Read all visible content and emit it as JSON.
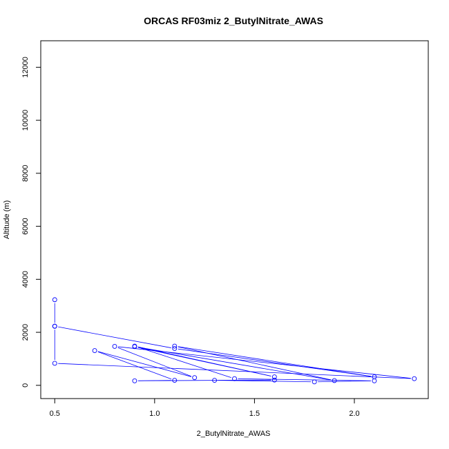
{
  "chart_data": {
    "type": "line",
    "title": "ORCAS RF03miz 2_ButylNitrate_AWAS",
    "xlabel": "2_ButylNitrate_AWAS",
    "ylabel": "Altitude (m)",
    "xlim": [
      0.43,
      2.37
    ],
    "ylim": [
      -500,
      13000
    ],
    "x_ticks": [
      0.5,
      1.0,
      1.5,
      2.0
    ],
    "x_tick_labels": [
      "0.5",
      "1.0",
      "1.5",
      "2.0"
    ],
    "y_ticks": [
      0,
      2000,
      4000,
      6000,
      8000,
      10000,
      12000
    ],
    "y_tick_labels": [
      "0",
      "2000",
      "4000",
      "6000",
      "8000",
      "10000",
      "12000"
    ],
    "grid": false,
    "legend": "none",
    "colors": {
      "series": "#0000ff",
      "axis": "#000000",
      "background": "#ffffff"
    },
    "series": [
      {
        "points": [
          {
            "x": 0.5,
            "y": 3230
          },
          {
            "x": 0.5,
            "y": 2230
          },
          {
            "x": 0.5,
            "y": 830
          },
          {
            "x": 2.3,
            "y": 250
          },
          {
            "x": 0.8,
            "y": 1470
          },
          {
            "x": 1.2,
            "y": 290
          },
          {
            "x": 0.7,
            "y": 1310
          },
          {
            "x": 1.1,
            "y": 190
          },
          {
            "x": 0.9,
            "y": 170
          },
          {
            "x": 1.6,
            "y": 200
          },
          {
            "x": 1.3,
            "y": 190
          },
          {
            "x": 1.8,
            "y": 130
          },
          {
            "x": 2.1,
            "y": 170
          },
          {
            "x": 1.4,
            "y": 250
          },
          {
            "x": 0.9,
            "y": 1480
          },
          {
            "x": 1.6,
            "y": 320
          },
          {
            "x": 0.9,
            "y": 1460
          },
          {
            "x": 1.9,
            "y": 180
          },
          {
            "x": 1.1,
            "y": 1480
          },
          {
            "x": 2.1,
            "y": 320
          },
          {
            "x": 1.1,
            "y": 1390
          },
          {
            "x": 0.5,
            "y": 2230
          }
        ]
      }
    ]
  }
}
